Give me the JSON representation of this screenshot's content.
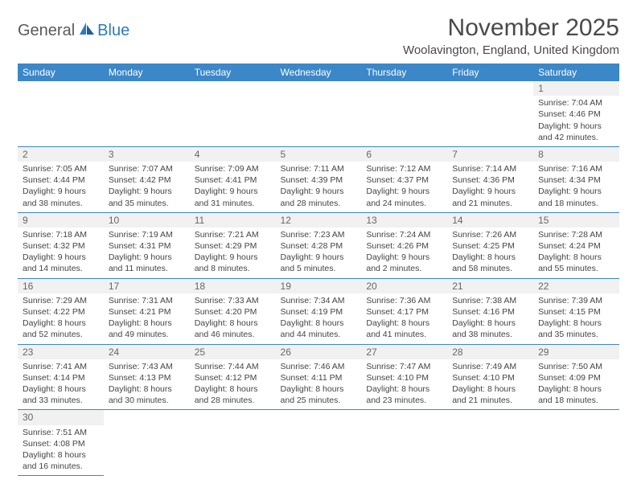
{
  "logo": {
    "text1": "General",
    "text2": "Blue"
  },
  "title": "November 2025",
  "location": "Woolavington, England, United Kingdom",
  "colors": {
    "header_bg": "#3b87c8",
    "header_text": "#ffffff",
    "rule": "#3b87c8",
    "daynum_bg": "#f1f1f1",
    "text": "#444444",
    "logo_gray": "#5a5a5a",
    "logo_blue": "#2b7bbf"
  },
  "weekdays": [
    "Sunday",
    "Monday",
    "Tuesday",
    "Wednesday",
    "Thursday",
    "Friday",
    "Saturday"
  ],
  "weeks": [
    [
      null,
      null,
      null,
      null,
      null,
      null,
      {
        "n": "1",
        "sunrise": "7:04 AM",
        "sunset": "4:46 PM",
        "dh": "9",
        "dm": "42"
      }
    ],
    [
      {
        "n": "2",
        "sunrise": "7:05 AM",
        "sunset": "4:44 PM",
        "dh": "9",
        "dm": "38"
      },
      {
        "n": "3",
        "sunrise": "7:07 AM",
        "sunset": "4:42 PM",
        "dh": "9",
        "dm": "35"
      },
      {
        "n": "4",
        "sunrise": "7:09 AM",
        "sunset": "4:41 PM",
        "dh": "9",
        "dm": "31"
      },
      {
        "n": "5",
        "sunrise": "7:11 AM",
        "sunset": "4:39 PM",
        "dh": "9",
        "dm": "28"
      },
      {
        "n": "6",
        "sunrise": "7:12 AM",
        "sunset": "4:37 PM",
        "dh": "9",
        "dm": "24"
      },
      {
        "n": "7",
        "sunrise": "7:14 AM",
        "sunset": "4:36 PM",
        "dh": "9",
        "dm": "21"
      },
      {
        "n": "8",
        "sunrise": "7:16 AM",
        "sunset": "4:34 PM",
        "dh": "9",
        "dm": "18"
      }
    ],
    [
      {
        "n": "9",
        "sunrise": "7:18 AM",
        "sunset": "4:32 PM",
        "dh": "9",
        "dm": "14"
      },
      {
        "n": "10",
        "sunrise": "7:19 AM",
        "sunset": "4:31 PM",
        "dh": "9",
        "dm": "11"
      },
      {
        "n": "11",
        "sunrise": "7:21 AM",
        "sunset": "4:29 PM",
        "dh": "9",
        "dm": "8"
      },
      {
        "n": "12",
        "sunrise": "7:23 AM",
        "sunset": "4:28 PM",
        "dh": "9",
        "dm": "5"
      },
      {
        "n": "13",
        "sunrise": "7:24 AM",
        "sunset": "4:26 PM",
        "dh": "9",
        "dm": "2"
      },
      {
        "n": "14",
        "sunrise": "7:26 AM",
        "sunset": "4:25 PM",
        "dh": "8",
        "dm": "58"
      },
      {
        "n": "15",
        "sunrise": "7:28 AM",
        "sunset": "4:24 PM",
        "dh": "8",
        "dm": "55"
      }
    ],
    [
      {
        "n": "16",
        "sunrise": "7:29 AM",
        "sunset": "4:22 PM",
        "dh": "8",
        "dm": "52"
      },
      {
        "n": "17",
        "sunrise": "7:31 AM",
        "sunset": "4:21 PM",
        "dh": "8",
        "dm": "49"
      },
      {
        "n": "18",
        "sunrise": "7:33 AM",
        "sunset": "4:20 PM",
        "dh": "8",
        "dm": "46"
      },
      {
        "n": "19",
        "sunrise": "7:34 AM",
        "sunset": "4:19 PM",
        "dh": "8",
        "dm": "44"
      },
      {
        "n": "20",
        "sunrise": "7:36 AM",
        "sunset": "4:17 PM",
        "dh": "8",
        "dm": "41"
      },
      {
        "n": "21",
        "sunrise": "7:38 AM",
        "sunset": "4:16 PM",
        "dh": "8",
        "dm": "38"
      },
      {
        "n": "22",
        "sunrise": "7:39 AM",
        "sunset": "4:15 PM",
        "dh": "8",
        "dm": "35"
      }
    ],
    [
      {
        "n": "23",
        "sunrise": "7:41 AM",
        "sunset": "4:14 PM",
        "dh": "8",
        "dm": "33"
      },
      {
        "n": "24",
        "sunrise": "7:43 AM",
        "sunset": "4:13 PM",
        "dh": "8",
        "dm": "30"
      },
      {
        "n": "25",
        "sunrise": "7:44 AM",
        "sunset": "4:12 PM",
        "dh": "8",
        "dm": "28"
      },
      {
        "n": "26",
        "sunrise": "7:46 AM",
        "sunset": "4:11 PM",
        "dh": "8",
        "dm": "25"
      },
      {
        "n": "27",
        "sunrise": "7:47 AM",
        "sunset": "4:10 PM",
        "dh": "8",
        "dm": "23"
      },
      {
        "n": "28",
        "sunrise": "7:49 AM",
        "sunset": "4:10 PM",
        "dh": "8",
        "dm": "21"
      },
      {
        "n": "29",
        "sunrise": "7:50 AM",
        "sunset": "4:09 PM",
        "dh": "8",
        "dm": "18"
      }
    ],
    [
      {
        "n": "30",
        "sunrise": "7:51 AM",
        "sunset": "4:08 PM",
        "dh": "8",
        "dm": "16"
      },
      null,
      null,
      null,
      null,
      null,
      null
    ]
  ]
}
